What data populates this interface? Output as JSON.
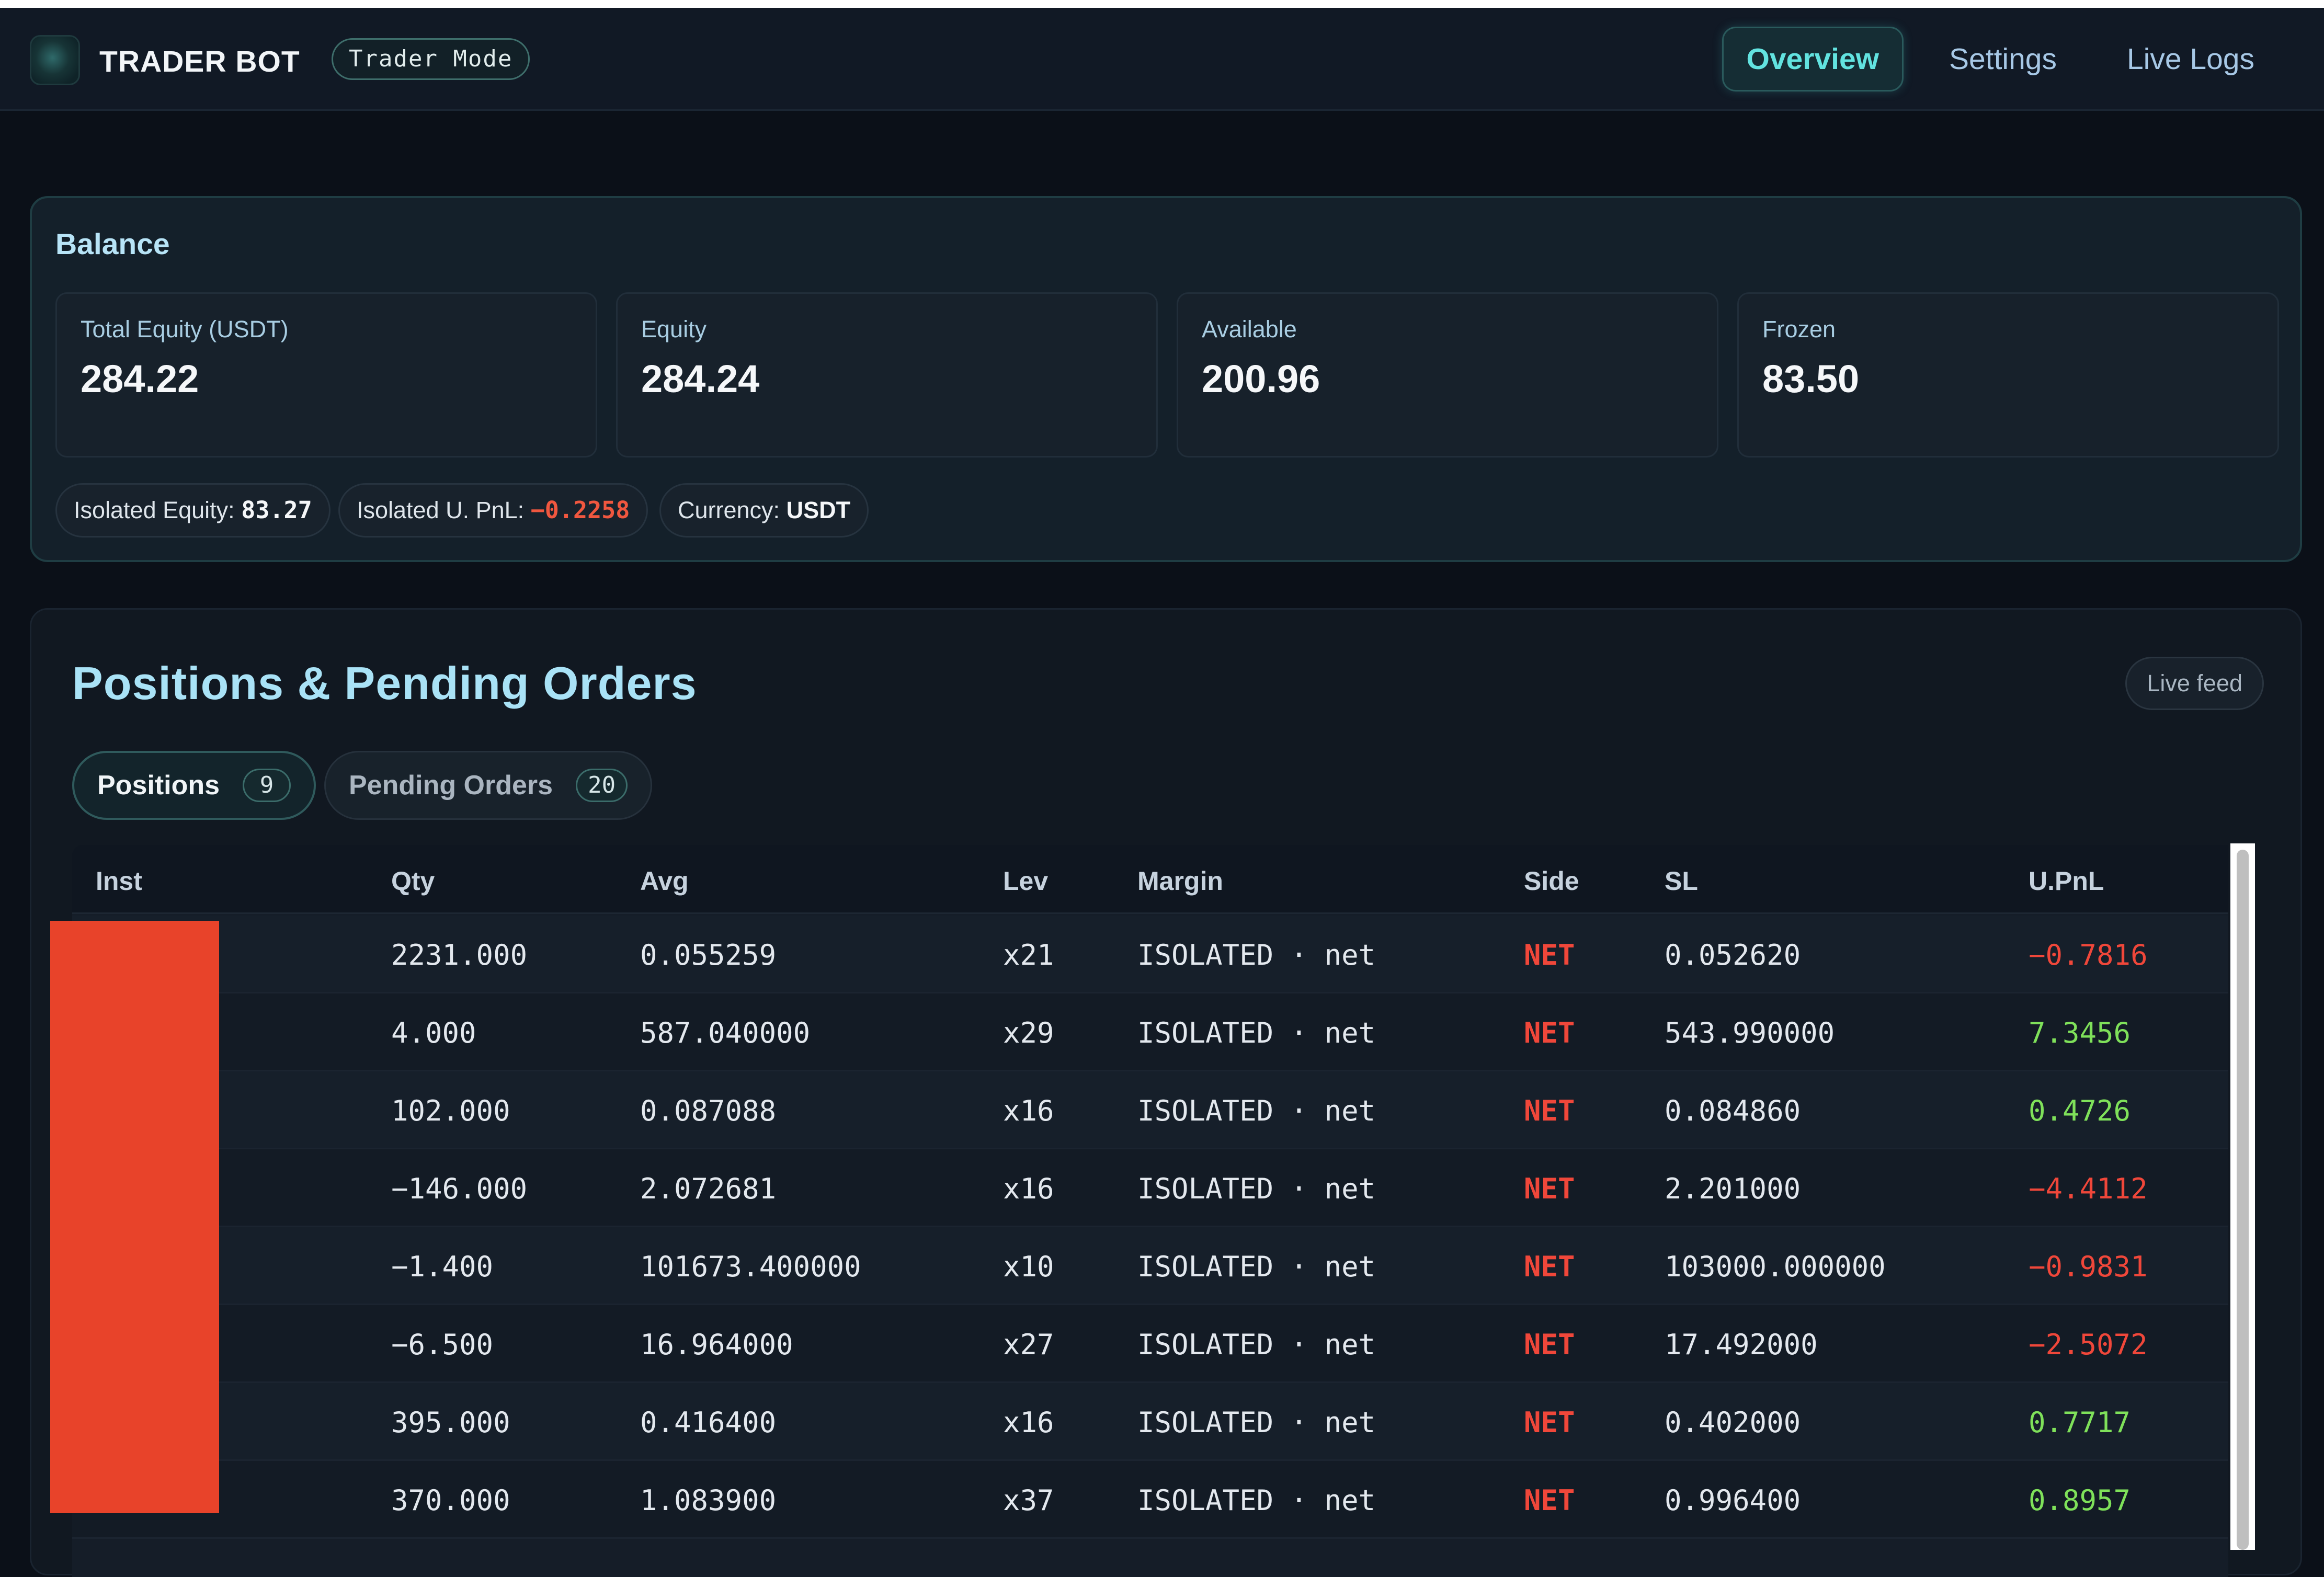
{
  "header": {
    "app_title": "TRADER BOT",
    "mode_badge": "Trader Mode",
    "nav": [
      {
        "label": "Overview",
        "active": true
      },
      {
        "label": "Settings",
        "active": false
      },
      {
        "label": "Live Logs",
        "active": false
      }
    ]
  },
  "balance": {
    "title": "Balance",
    "stats": [
      {
        "label": "Total Equity (USDT)",
        "value": "284.22"
      },
      {
        "label": "Equity",
        "value": "284.24"
      },
      {
        "label": "Available",
        "value": "200.96"
      },
      {
        "label": "Frozen",
        "value": "83.50"
      }
    ],
    "chips": {
      "isolated_equity_label": "Isolated Equity:",
      "isolated_equity_value": "83.27",
      "isolated_upnl_label": "Isolated U. PnL:",
      "isolated_upnl_value": "−0.2258",
      "currency_label": "Currency:",
      "currency_value": "USDT"
    }
  },
  "positions": {
    "title": "Positions & Pending Orders",
    "live_badge": "Live feed",
    "tabs": [
      {
        "label": "Positions",
        "count": "9",
        "active": true
      },
      {
        "label": "Pending Orders",
        "count": "20",
        "active": false
      }
    ],
    "columns": [
      "Inst",
      "Qty",
      "Avg",
      "Lev",
      "Margin",
      "Side",
      "SL",
      "U.PnL"
    ],
    "rows": [
      {
        "qty": "2231.000",
        "avg": "0.055259",
        "lev": "x21",
        "margin": "ISOLATED · net",
        "side": "NET",
        "sl": "0.052620",
        "upnl": "−0.7816",
        "upnl_sign": "neg"
      },
      {
        "qty": "4.000",
        "avg": "587.040000",
        "lev": "x29",
        "margin": "ISOLATED · net",
        "side": "NET",
        "sl": "543.990000",
        "upnl": "7.3456",
        "upnl_sign": "pos"
      },
      {
        "qty": "102.000",
        "avg": "0.087088",
        "lev": "x16",
        "margin": "ISOLATED · net",
        "side": "NET",
        "sl": "0.084860",
        "upnl": "0.4726",
        "upnl_sign": "pos"
      },
      {
        "qty": "−146.000",
        "avg": "2.072681",
        "lev": "x16",
        "margin": "ISOLATED · net",
        "side": "NET",
        "sl": "2.201000",
        "upnl": "−4.4112",
        "upnl_sign": "neg"
      },
      {
        "qty": "−1.400",
        "avg": "101673.400000",
        "lev": "x10",
        "margin": "ISOLATED · net",
        "side": "NET",
        "sl": "103000.000000",
        "upnl": "−0.9831",
        "upnl_sign": "neg"
      },
      {
        "qty": "−6.500",
        "avg": "16.964000",
        "lev": "x27",
        "margin": "ISOLATED · net",
        "side": "NET",
        "sl": "17.492000",
        "upnl": "−2.5072",
        "upnl_sign": "neg"
      },
      {
        "qty": "395.000",
        "avg": "0.416400",
        "lev": "x16",
        "margin": "ISOLATED · net",
        "side": "NET",
        "sl": "0.402000",
        "upnl": "0.7717",
        "upnl_sign": "pos"
      },
      {
        "qty": "370.000",
        "avg": "1.083900",
        "lev": "x37",
        "margin": "ISOLATED · net",
        "side": "NET",
        "sl": "0.996400",
        "upnl": "0.8957",
        "upnl_sign": "pos"
      }
    ]
  },
  "colors": {
    "accent": "#62e3e0",
    "negative": "#f0473a",
    "positive": "#7fe15a",
    "redaction": "#e8432a"
  }
}
